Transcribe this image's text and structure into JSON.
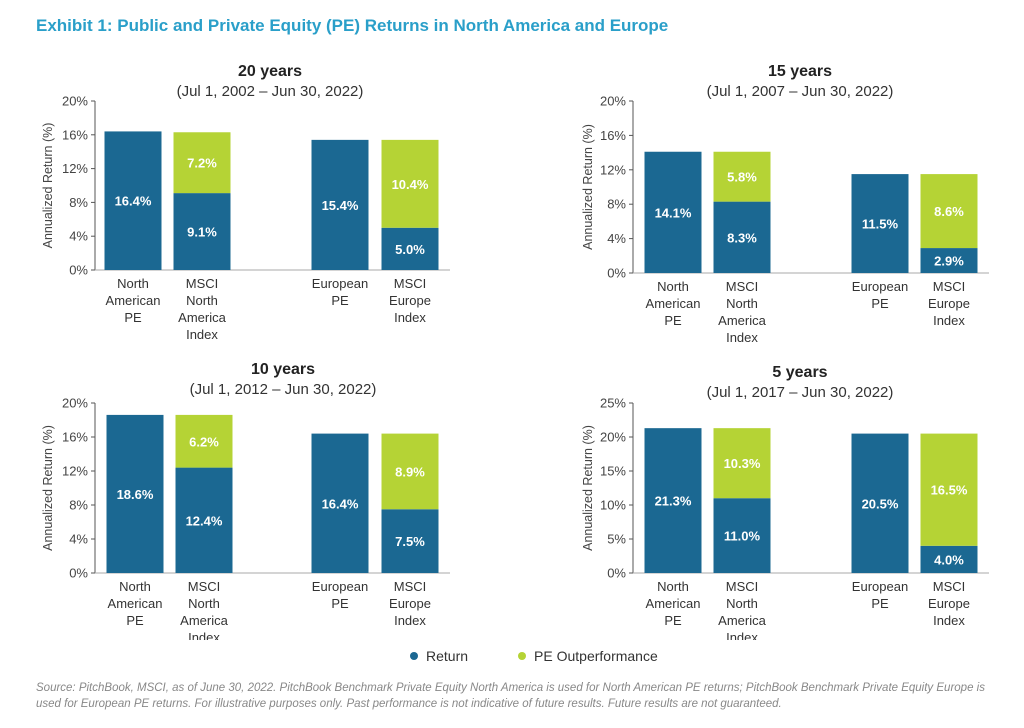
{
  "title": "Exhibit 1: Public and Private Equity (PE) Returns in North America and Europe",
  "colors": {
    "return": "#1b6892",
    "outperformance": "#b5d335",
    "title": "#2a9fc9"
  },
  "legend": {
    "return": "Return",
    "outperformance": "PE Outperformance"
  },
  "source": "Source: PitchBook, MSCI, as of June 30, 2022. PitchBook Benchmark Private Equity North America is used for North American PE returns; PitchBook Benchmark Private Equity Europe is used for European PE returns. For illustrative purposes only. Past performance is not indicative of future results. Future results are not guaranteed.",
  "chart_data": [
    {
      "type": "bar",
      "title": "20 years",
      "subtitle": "(Jul 1, 2002 – Jun 30, 2022)",
      "ylabel": "Annualized Return (%)",
      "ylim": [
        0,
        20
      ],
      "yticks": [
        "0%",
        "4%",
        "8%",
        "12%",
        "16%",
        "20%"
      ],
      "ytick_values": [
        0,
        4,
        8,
        12,
        16,
        20
      ],
      "categories": [
        [
          "North",
          "American",
          "PE"
        ],
        [
          "MSCI",
          "North",
          "America",
          "Index"
        ],
        [
          "European",
          "PE"
        ],
        [
          "MSCI",
          "Europe",
          "Index"
        ]
      ],
      "bars": [
        {
          "return": 16.4,
          "return_label": "16.4%"
        },
        {
          "return": 9.1,
          "return_label": "9.1%",
          "outperformance": 7.2,
          "outperformance_label": "7.2%"
        },
        {
          "return": 15.4,
          "return_label": "15.4%"
        },
        {
          "return": 5.0,
          "return_label": "5.0%",
          "outperformance": 10.4,
          "outperformance_label": "10.4%"
        }
      ]
    },
    {
      "type": "bar",
      "title": "15 years",
      "subtitle": "(Jul 1, 2007 – Jun 30, 2022)",
      "ylabel": "Annualized Return (%)",
      "ylim": [
        0,
        20
      ],
      "yticks": [
        "0%",
        "4%",
        "8%",
        "12%",
        "16%",
        "20%"
      ],
      "ytick_values": [
        0,
        4,
        8,
        12,
        16,
        20
      ],
      "categories": [
        [
          "North",
          "American",
          "PE"
        ],
        [
          "MSCI",
          "North",
          "America",
          "Index"
        ],
        [
          "European",
          "PE"
        ],
        [
          "MSCI",
          "Europe",
          "Index"
        ]
      ],
      "bars": [
        {
          "return": 14.1,
          "return_label": "14.1%"
        },
        {
          "return": 8.3,
          "return_label": "8.3%",
          "outperformance": 5.8,
          "outperformance_label": "5.8%"
        },
        {
          "return": 11.5,
          "return_label": "11.5%"
        },
        {
          "return": 2.9,
          "return_label": "2.9%",
          "outperformance": 8.6,
          "outperformance_label": "8.6%"
        }
      ]
    },
    {
      "type": "bar",
      "title": "10 years",
      "subtitle": "(Jul 1, 2012 – Jun 30, 2022)",
      "ylabel": "Annualized Return (%)",
      "ylim": [
        0,
        20
      ],
      "yticks": [
        "0%",
        "4%",
        "8%",
        "12%",
        "16%",
        "20%"
      ],
      "ytick_values": [
        0,
        4,
        8,
        12,
        16,
        20
      ],
      "categories": [
        [
          "North",
          "American",
          "PE"
        ],
        [
          "MSCI",
          "North",
          "America",
          "Index"
        ],
        [
          "European",
          "PE"
        ],
        [
          "MSCI",
          "Europe",
          "Index"
        ]
      ],
      "bars": [
        {
          "return": 18.6,
          "return_label": "18.6%"
        },
        {
          "return": 12.4,
          "return_label": "12.4%",
          "outperformance": 6.2,
          "outperformance_label": "6.2%"
        },
        {
          "return": 16.4,
          "return_label": "16.4%"
        },
        {
          "return": 7.5,
          "return_label": "7.5%",
          "outperformance": 8.9,
          "outperformance_label": "8.9%"
        }
      ]
    },
    {
      "type": "bar",
      "title": "5 years",
      "subtitle": "(Jul 1, 2017 – Jun 30, 2022)",
      "ylabel": "Annualized Return (%)",
      "ylim": [
        0,
        25
      ],
      "yticks": [
        "0%",
        "5%",
        "10%",
        "15%",
        "20%",
        "25%"
      ],
      "ytick_values": [
        0,
        5,
        10,
        15,
        20,
        25
      ],
      "categories": [
        [
          "North",
          "American",
          "PE"
        ],
        [
          "MSCI",
          "North",
          "America",
          "Index"
        ],
        [
          "European",
          "PE"
        ],
        [
          "MSCI",
          "Europe",
          "Index"
        ]
      ],
      "bars": [
        {
          "return": 21.3,
          "return_label": "21.3%"
        },
        {
          "return": 11.0,
          "return_label": "11.0%",
          "outperformance": 10.3,
          "outperformance_label": "10.3%"
        },
        {
          "return": 20.5,
          "return_label": "20.5%"
        },
        {
          "return": 4.0,
          "return_label": "4.0%",
          "outperformance": 16.5,
          "outperformance_label": "16.5%"
        }
      ]
    }
  ]
}
